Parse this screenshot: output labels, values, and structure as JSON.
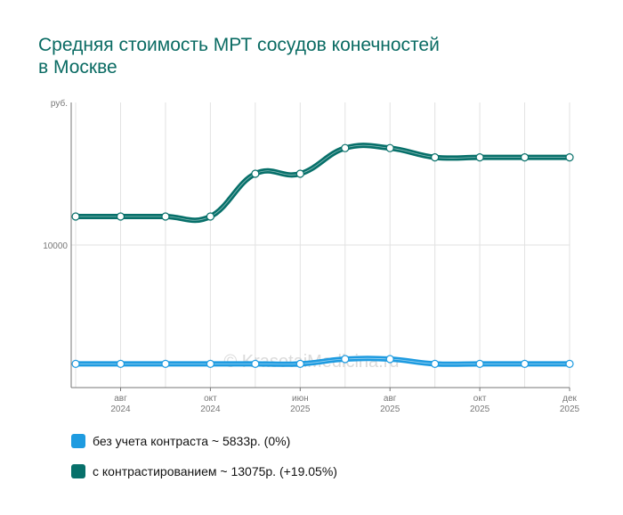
{
  "chart_data": {
    "type": "line",
    "title_lines": [
      "Средняя стоимость МРТ сосудов конечностей",
      "в Москве"
    ],
    "y_unit_label": "руб.",
    "y_ticks": [
      10000
    ],
    "y_tick_labels": [
      "10000"
    ],
    "ylim": [
      5000,
      15000
    ],
    "x": [
      1,
      2,
      3,
      4,
      5,
      6,
      7,
      8,
      9,
      10,
      11,
      12
    ],
    "xlim": [
      0.9,
      12
    ],
    "x_ticks": [
      {
        "x": 2,
        "month": "авг",
        "year": "2024"
      },
      {
        "x": 4,
        "month": "окт",
        "year": "2024"
      },
      {
        "x": 6,
        "month": "июн",
        "year": "2025"
      },
      {
        "x": 8,
        "month": "авг",
        "year": "2025"
      },
      {
        "x": 10,
        "month": "окт",
        "year": "2025"
      },
      {
        "x": 12,
        "month": "дек",
        "year": "2025"
      }
    ],
    "series": [
      {
        "name": "без учета контраста",
        "color": "#1e9be0",
        "values": [
          5833,
          5833,
          5833,
          5833,
          5833,
          5833,
          6000,
          6000,
          5833,
          5833,
          5833,
          5833
        ]
      },
      {
        "name": "с контрастированием",
        "color": "#07706a",
        "values": [
          11000,
          11000,
          11000,
          11000,
          12500,
          12500,
          13400,
          13400,
          13075,
          13075,
          13075,
          13075
        ]
      }
    ],
    "watermark": "© KrasotaiMedicina.ru",
    "legend": [
      {
        "label": "без учета контраста ~ 5833р. (0%)",
        "color": "#1e9be0"
      },
      {
        "label": "с контрастированием ~ 13075р. (+19.05%)",
        "color": "#07706a"
      }
    ]
  }
}
